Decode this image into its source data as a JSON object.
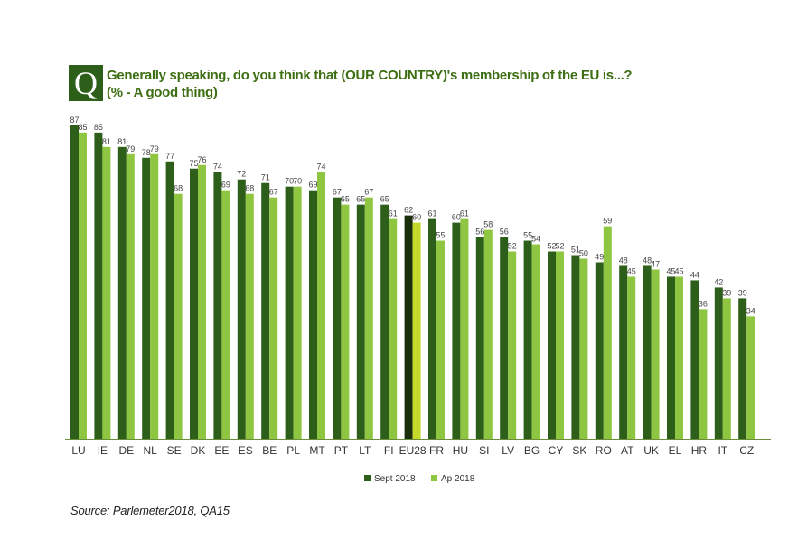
{
  "question_badge": "Q",
  "title_line1": "Generally speaking, do you think that (OUR COUNTRY)'s membership of the EU is...?",
  "title_line2": "(% -  A  good thing)",
  "source": "Source: Parlemeter2018, QA15",
  "colors": {
    "sept_2018": "#2d5f1a",
    "apr_2018": "#8fc641",
    "eu28_sept_2018": "#1a2e0c",
    "eu28_apr_2018": "#c5d92a",
    "baseline": "#6b8e3c"
  },
  "chart_data": {
    "type": "bar",
    "title": "Generally speaking, do you think that (OUR COUNTRY)'s membership of the EU is...? (% -  A  good thing)",
    "categories": [
      "LU",
      "IE",
      "DE",
      "NL",
      "SE",
      "DK",
      "EE",
      "ES",
      "BE",
      "PL",
      "MT",
      "PT",
      "LT",
      "FI",
      "EU28",
      "FR",
      "HU",
      "SI",
      "LV",
      "BG",
      "CY",
      "SK",
      "RO",
      "AT",
      "UK",
      "EL",
      "HR",
      "IT",
      "CZ"
    ],
    "series": [
      {
        "name": "Sept 2018",
        "values": [
          87,
          85,
          81,
          78,
          77,
          75,
          74,
          72,
          71,
          70,
          69,
          67,
          65,
          65,
          62,
          61,
          60,
          56,
          56,
          55,
          52,
          51,
          49,
          48,
          48,
          45,
          44,
          42,
          39
        ]
      },
      {
        "name": "Ap 2018",
        "values": [
          85,
          81,
          79,
          79,
          68,
          76,
          69,
          68,
          67,
          70,
          74,
          65,
          67,
          61,
          60,
          55,
          61,
          58,
          52,
          54,
          52,
          50,
          59,
          45,
          47,
          45,
          36,
          39,
          34
        ]
      }
    ],
    "highlight_category": "EU28",
    "ylim": [
      0,
      90
    ],
    "legend": [
      "Sept 2018",
      "Ap 2018"
    ],
    "legend_position": "bottom-center",
    "grid": false
  }
}
